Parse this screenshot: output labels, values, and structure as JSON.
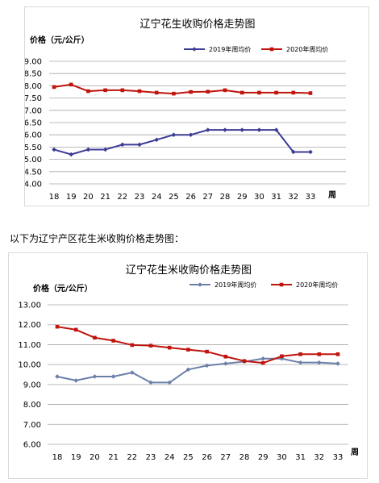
{
  "between_text": "以下为辽宁产区花生米收购价格走势图：",
  "chart_data": [
    {
      "type": "line",
      "title": "辽宁花生收购价格走势图",
      "ylabel": "价格（元/公斤）",
      "xlabel": "周",
      "categories": [
        "18",
        "19",
        "20",
        "21",
        "22",
        "23",
        "24",
        "25",
        "26",
        "27",
        "28",
        "29",
        "30",
        "31",
        "32",
        "33"
      ],
      "ylim": [
        4.0,
        9.0
      ],
      "ytick_labels": [
        "9.00",
        "8.50",
        "8.00",
        "7.50",
        "7.00",
        "6.50",
        "6.00",
        "5.50",
        "5.00",
        "4.50",
        "4.00"
      ],
      "grid": true,
      "legend_position": "top",
      "series": [
        {
          "name": "2019年周均价",
          "color": "#3c3c96",
          "marker": "diamond",
          "values": [
            5.4,
            5.2,
            5.4,
            5.4,
            5.6,
            5.6,
            5.8,
            6.0,
            6.0,
            6.2,
            6.2,
            6.2,
            6.2,
            6.2,
            5.3,
            5.3
          ]
        },
        {
          "name": "2020年周均价",
          "color": "#c0140e",
          "marker": "square",
          "values": [
            7.95,
            8.05,
            7.78,
            7.82,
            7.82,
            7.78,
            7.72,
            7.68,
            7.75,
            7.76,
            7.82,
            7.72,
            7.72,
            7.72,
            7.72,
            7.7
          ]
        }
      ]
    },
    {
      "type": "line",
      "title": "辽宁花生米收购价格走势图",
      "ylabel": "价格（元/公斤）",
      "xlabel": "周",
      "categories": [
        "18",
        "19",
        "20",
        "21",
        "22",
        "23",
        "24",
        "25",
        "26",
        "27",
        "28",
        "29",
        "30",
        "31",
        "32",
        "33"
      ],
      "ylim": [
        6.0,
        13.0
      ],
      "ytick_labels": [
        "13.00",
        "12.00",
        "11.00",
        "10.00",
        "9.00",
        "8.00",
        "7.00",
        "6.00"
      ],
      "grid": true,
      "legend_position": "top",
      "series": [
        {
          "name": "2019年周均价",
          "color": "#6b7fa8",
          "marker": "diamond",
          "values": [
            9.4,
            9.2,
            9.4,
            9.4,
            9.6,
            9.1,
            9.1,
            9.75,
            9.95,
            10.05,
            10.15,
            10.3,
            10.3,
            10.1,
            10.1,
            10.05
          ]
        },
        {
          "name": "2020年周均价",
          "color": "#c0140e",
          "marker": "square",
          "values": [
            11.9,
            11.75,
            11.35,
            11.2,
            10.98,
            10.95,
            10.85,
            10.75,
            10.65,
            10.4,
            10.18,
            10.08,
            10.42,
            10.52,
            10.52,
            10.52
          ]
        }
      ]
    }
  ]
}
